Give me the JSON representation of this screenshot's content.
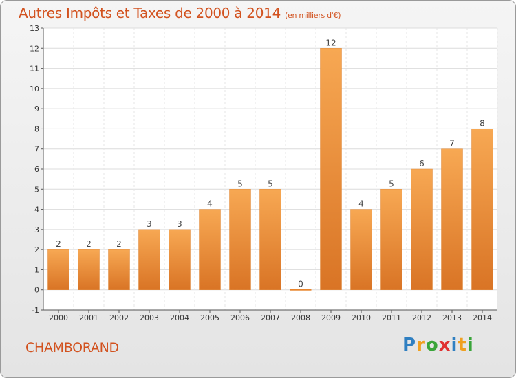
{
  "header": {
    "title": "Autres Impôts et Taxes de 2000 à 2014",
    "subtitle": "(en milliers d'€)"
  },
  "commune": "CHAMBORAND",
  "logo": {
    "letters": [
      {
        "char": "P",
        "color": "#2f7fc1"
      },
      {
        "char": "r",
        "color": "#f0a020"
      },
      {
        "char": "o",
        "color": "#3aa53a"
      },
      {
        "char": "x",
        "color": "#e03030"
      },
      {
        "char": "i",
        "color": "#2f7fc1"
      },
      {
        "char": "t",
        "color": "#f0a020"
      },
      {
        "char": "i",
        "color": "#3aa53a"
      }
    ]
  },
  "chart_data": {
    "type": "bar",
    "categories": [
      "2000",
      "2001",
      "2002",
      "2003",
      "2004",
      "2005",
      "2006",
      "2007",
      "2008",
      "2009",
      "2010",
      "2011",
      "2012",
      "2013",
      "2014"
    ],
    "values": [
      2,
      2,
      2,
      3,
      3,
      4,
      5,
      5,
      0,
      12,
      4,
      5,
      6,
      7,
      8
    ],
    "ylim": [
      -1,
      13
    ],
    "yticks": [
      -1,
      0,
      1,
      2,
      3,
      4,
      5,
      6,
      7,
      8,
      9,
      10,
      11,
      12,
      13
    ],
    "grid": true,
    "bar_color": "#e8852e",
    "bar_color_light": "#f6a75a",
    "title": "Autres Impôts et Taxes de 2000 à 2014"
  }
}
